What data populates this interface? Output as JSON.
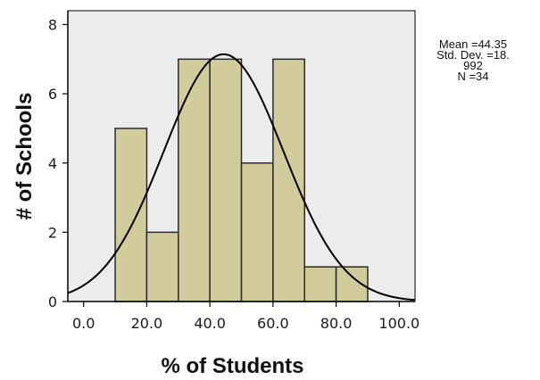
{
  "chart_data": {
    "type": "bar",
    "xlabel": "% of Students",
    "ylabel": "# of Schools",
    "xlim": [
      -5,
      105
    ],
    "ylim": [
      0,
      8.4
    ],
    "x_ticks": [
      0,
      20,
      40,
      60,
      80,
      100
    ],
    "x_tick_labels": [
      "0.0",
      "20.0",
      "40.0",
      "60.0",
      "80.0",
      "100.0"
    ],
    "y_ticks": [
      0,
      2,
      4,
      6,
      8
    ],
    "y_tick_labels": [
      "0",
      "2",
      "4",
      "6",
      "8"
    ],
    "bins": [
      {
        "x0": 10,
        "x1": 20,
        "count": 5
      },
      {
        "x0": 20,
        "x1": 30,
        "count": 2
      },
      {
        "x0": 30,
        "x1": 40,
        "count": 7
      },
      {
        "x0": 40,
        "x1": 50,
        "count": 7
      },
      {
        "x0": 50,
        "x1": 60,
        "count": 4
      },
      {
        "x0": 60,
        "x1": 70,
        "count": 7
      },
      {
        "x0": 70,
        "x1": 80,
        "count": 1
      },
      {
        "x0": 80,
        "x1": 90,
        "count": 1
      }
    ],
    "normal_curve": {
      "mean": 44.35,
      "sd": 18.992,
      "n": 34,
      "bin_width": 10
    },
    "stats": {
      "mean_line": "Mean =44.35",
      "sd_line_1": "Std. Dev. =18.",
      "sd_line_2": "992",
      "n_line": "N =34"
    },
    "colors": {
      "plot_background": "#ececec",
      "bar_fill": "#d2cb9c",
      "bar_stroke": "#2a2a2a",
      "curve": "#000000",
      "axis": "#000000"
    }
  }
}
